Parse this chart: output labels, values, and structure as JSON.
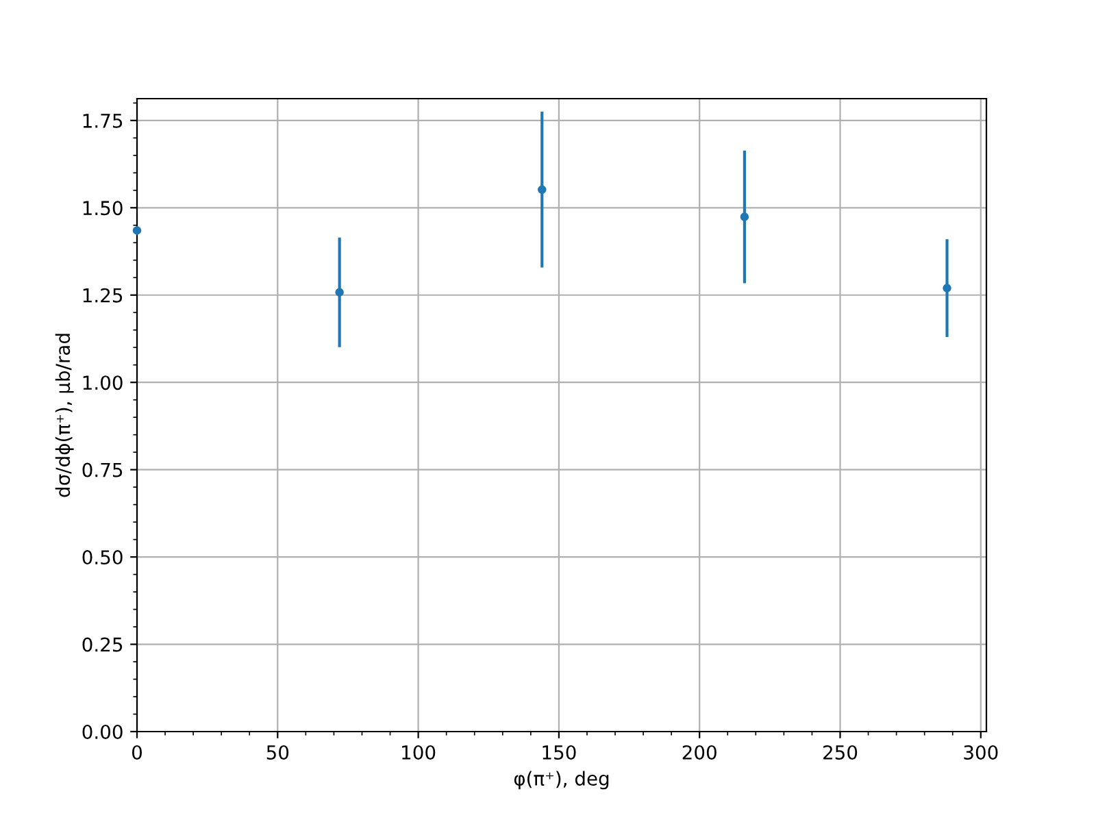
{
  "chart_data": {
    "type": "scatter",
    "xlabel": "φ(π⁺), deg",
    "ylabel": "dσ/dϕ(π⁺), μb/rad",
    "x": [
      0,
      72,
      144,
      216,
      288
    ],
    "series": [
      {
        "color": "#1f77b4",
        "values": [
          1.435,
          1.258,
          1.552,
          1.474,
          1.27
        ],
        "errors": [
          null,
          0.157,
          0.223,
          0.19,
          0.14
        ]
      }
    ],
    "xlim": [
      0,
      302
    ],
    "xticks": [
      0,
      50,
      100,
      150,
      200,
      250,
      300
    ],
    "ylim": [
      0,
      1.8125
    ],
    "yticks": [
      {
        "value": 0,
        "label": "0.00"
      },
      {
        "value": 0.25,
        "label": "0.25"
      },
      {
        "value": 0.5,
        "label": "0.50"
      },
      {
        "value": 0.75,
        "label": "0.75"
      },
      {
        "value": 1.0,
        "label": "1.00"
      },
      {
        "value": 1.25,
        "label": "1.25"
      },
      {
        "value": 1.5,
        "label": "1.50"
      },
      {
        "value": 1.75,
        "label": "1.75"
      }
    ],
    "grid": true,
    "marker": "circle"
  }
}
